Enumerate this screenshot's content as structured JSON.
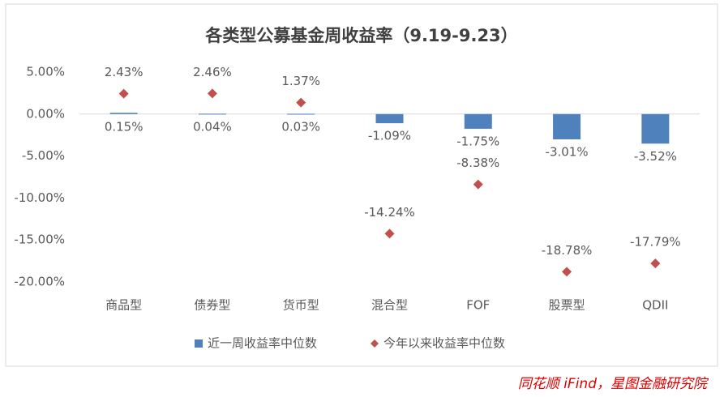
{
  "chart_data": {
    "type": "bar",
    "title": "各类型公募基金周收益率（9.19-9.23）",
    "categories": [
      "商品型",
      "债券型",
      "货币型",
      "混合型",
      "FOF",
      "股票型",
      "QDII"
    ],
    "series": [
      {
        "name": "近一周收益率中位数",
        "type": "bar",
        "color": "#4f81bd",
        "values": [
          0.15,
          0.04,
          0.03,
          -1.09,
          -1.75,
          -3.01,
          -3.52
        ],
        "value_labels": [
          "0.15%",
          "0.04%",
          "0.03%",
          "-1.09%",
          "-1.75%",
          "-3.01%",
          "-3.52%"
        ]
      },
      {
        "name": "今年以来收益率中位数",
        "type": "scatter",
        "color": "#c0504d",
        "values": [
          2.43,
          2.46,
          1.37,
          -14.24,
          -8.38,
          -18.78,
          -17.79
        ],
        "value_labels": [
          "2.43%",
          "2.46%",
          "1.37%",
          "-14.24%",
          "-8.38%",
          "-18.78%",
          "-17.79%"
        ]
      }
    ],
    "ylim": [
      -20,
      5
    ],
    "yticks": [
      {
        "value": 5,
        "label": "5.00%"
      },
      {
        "value": 0,
        "label": "0.00%"
      },
      {
        "value": -5,
        "label": "-5.00%"
      },
      {
        "value": -10,
        "label": "-10.00%"
      },
      {
        "value": -15,
        "label": "-15.00%"
      },
      {
        "value": -20,
        "label": "-20.00%"
      }
    ],
    "grid": false,
    "legend": "bottom",
    "source": "同花顺 iFind，星图金融研究院"
  }
}
